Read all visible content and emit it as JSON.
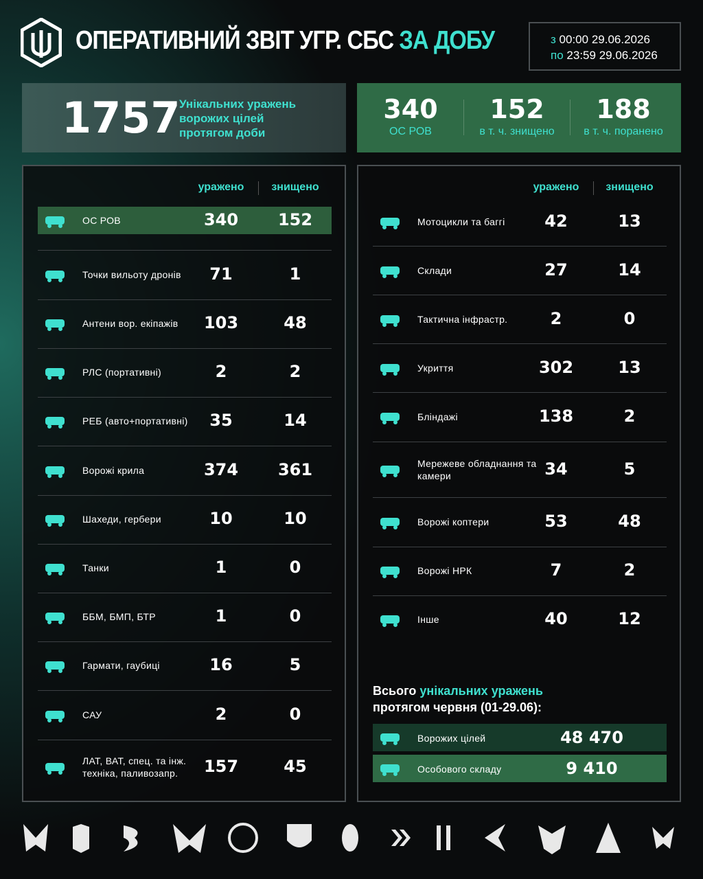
{
  "header": {
    "title": "ОПЕРАТИВНИЙ ЗВІТ УГР. СБС",
    "title_accent": "ЗА ДОБУ",
    "period": {
      "from_label": "з",
      "from_time": "00:00",
      "from_date": "29.06.2026",
      "to_label": "по",
      "to_time": "23:59",
      "to_date": "29.06.2026"
    }
  },
  "summary": {
    "total": 1757,
    "total_label": "Унікальних уражень ворожих цілей протягом доби",
    "personnel": [
      {
        "value": 340,
        "label": "ОС РОВ"
      },
      {
        "value": 152,
        "label": "в т. ч. знищено"
      },
      {
        "value": 188,
        "label": "в т. ч. поранено"
      }
    ]
  },
  "left_table": {
    "columns": [
      "уражено",
      "знищено"
    ],
    "rows": [
      [
        "ОС РОВ",
        340,
        152
      ],
      [
        "Точки вильоту дронів",
        71,
        1
      ],
      [
        "Антени вор. екіпажів",
        103,
        48
      ],
      [
        "РЛС (портативні)",
        2,
        2
      ],
      [
        "РЕБ (авто+портативні)",
        35,
        14
      ],
      [
        "Ворожі крила",
        374,
        361
      ],
      [
        "Шахеди, гербери",
        10,
        10
      ],
      [
        "Танки",
        1,
        0
      ],
      [
        "ББМ, БМП, БТР",
        1,
        0
      ],
      [
        "Гармати, гаубиці",
        16,
        5
      ],
      [
        "САУ",
        2,
        0
      ],
      [
        "ЛАТ, ВАТ, спец. та інж. техніка, паливозапр.",
        157,
        45
      ]
    ]
  },
  "right_table": {
    "columns": [
      "уражено",
      "знищено"
    ],
    "rows": [
      [
        "Мотоцикли та баггі",
        42,
        13
      ],
      [
        "Склади",
        27,
        14
      ],
      [
        "Тактична інфрастр.",
        2,
        0
      ],
      [
        "Укриття",
        302,
        13
      ],
      [
        "Бліндажі",
        138,
        2
      ],
      [
        "Мережеве обладнання та камери",
        34,
        5
      ],
      [
        "Ворожі коптери",
        53,
        48
      ],
      [
        "Ворожі НРК",
        7,
        2
      ],
      [
        "Інше",
        40,
        12
      ]
    ]
  },
  "totals": {
    "heading_start": "Всього",
    "heading_accent": "унікальних уражень",
    "heading_end": "протягом червня (01-29.06):",
    "rows": [
      {
        "label": "Ворожих цілей",
        "value": "48 470"
      },
      {
        "label": "Особового складу",
        "value": "9 410"
      }
    ]
  }
}
